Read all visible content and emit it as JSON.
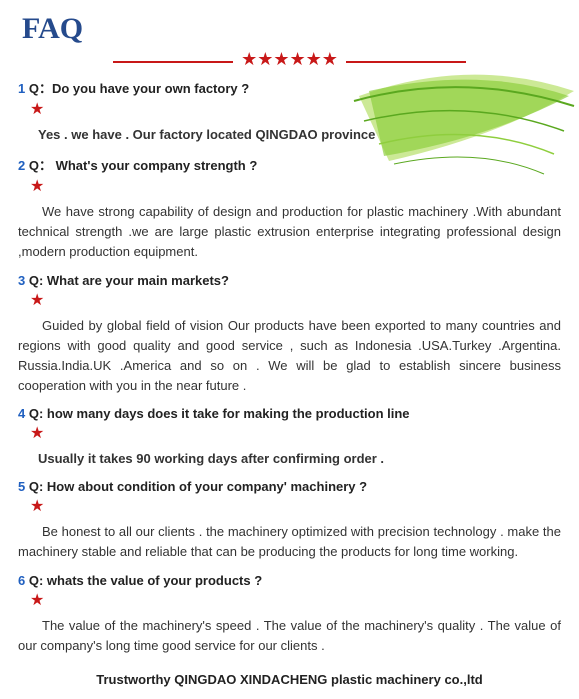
{
  "title": "FAQ",
  "star_glyph": "★",
  "star_count_header": 6,
  "header_line_color": "#c81818",
  "star_color": "#c81818",
  "qnum_color": "#2060c0",
  "leaf": {
    "stroke1": "#5aa81f",
    "stroke2": "#8fce3e",
    "fill1": "#8fce3e",
    "fill2": "#b7e06a"
  },
  "faq": [
    {
      "num": "1",
      "label": "Q：",
      "question": "Do you have your own factory ?",
      "answer": "Yes . we have . Our factory located QINGDAO    province",
      "answer_bold": true
    },
    {
      "num": "2",
      "label": "Q：",
      "question": "  What's your company strength ?",
      "answer": "We have strong capability of design and production for plastic machinery .With abundant technical strength .we are large plastic extrusion   enterprise integrating professional design ,modern production equipment.",
      "answer_bold": false
    },
    {
      "num": "3",
      "label": "Q:",
      "question": " What are your main markets?",
      "answer": "Guided by global field of vision Our products have been exported to many countries and regions with good quality and good service , such as Indonesia .USA.Turkey .Argentina. Russia.India.UK .America and so on .  We will be glad to establish sincere business cooperation with you in the near future .",
      "answer_bold": false
    },
    {
      "num": "4",
      "label": "Q:",
      "question": " how many days does it take for making the production line",
      "answer": "Usually it takes 90 working days after confirming order .",
      "answer_bold": true
    },
    {
      "num": "5",
      "label": "Q:",
      "question": " How about condition of your company' machinery ?",
      "answer": "Be honest to all our clients . the machinery optimized with precision technology . make the machinery stable and reliable that can be producing the products for long time working.",
      "answer_bold": false
    },
    {
      "num": "6",
      "label": "Q:",
      "question": "    whats the value of your products ?",
      "answer": "The value of the machinery's speed . The value of the machinery's quality . The value of our company's long time good service for our clients .",
      "answer_bold": false
    }
  ],
  "footer": "Trustworthy QINGDAO XINDACHENG plastic machinery co.,ltd"
}
